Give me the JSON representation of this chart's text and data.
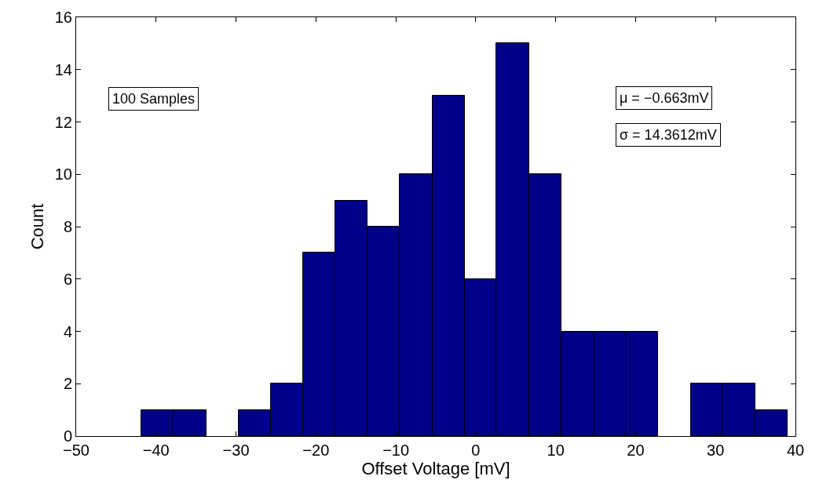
{
  "chart_data": {
    "type": "histogram",
    "xlabel": "Offset Voltage [mV]",
    "ylabel": "Count",
    "bins": [
      -41.8,
      -37.8,
      -33.7,
      -29.7,
      -25.6,
      -21.6,
      -17.6,
      -13.5,
      -9.5,
      -5.4,
      -1.4,
      2.6,
      6.7,
      10.7,
      14.8,
      18.8,
      22.8,
      26.9,
      30.9,
      35.0,
      39.0
    ],
    "values": [
      1,
      1,
      0,
      1,
      2,
      7,
      9,
      8,
      10,
      13,
      6,
      15,
      10,
      4,
      4,
      4,
      0,
      2,
      2,
      1
    ],
    "color": "#000088",
    "xlim": [
      -50,
      40
    ],
    "xticks": [
      -50,
      -40,
      -30,
      -20,
      -10,
      0,
      10,
      20,
      30,
      40
    ],
    "ylim": [
      0,
      16
    ],
    "yticks": [
      0,
      2,
      4,
      6,
      8,
      10,
      12,
      14,
      16
    ],
    "annotations": [
      "100 Samples",
      "μ = −0.663mV",
      "σ = 14.3612mV"
    ]
  }
}
